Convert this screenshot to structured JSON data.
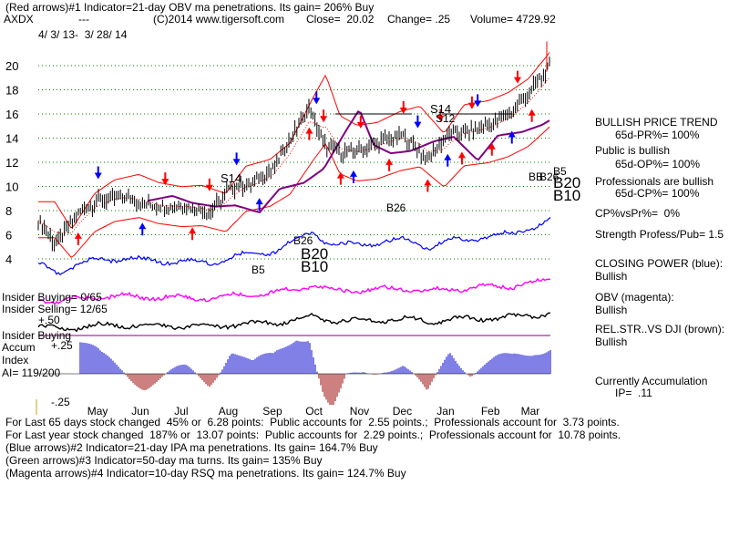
{
  "header": {
    "line1": "(Red arrows)#1 Indicator=21-day OBV ma penetrations. Its gain= 206% Buy",
    "ticker": "AXDX",
    "dashes": "---",
    "copyright": "(C)2014 www.tigersoft.com",
    "close": "Close=  20.02",
    "change": "Change= .25",
    "volume": "Volume= 4729.92",
    "date_range": "4/ 3/ 13-  3/ 28/ 14"
  },
  "right_panel": {
    "trend_title": "BULLISH PRICE TREND",
    "pr": "65d-PR%= 100%",
    "public_title": "Public is bullish",
    "op": "65d-OP%= 100%",
    "pro_title": "Professionals are bullish",
    "cp": "65d-CP%= 100%",
    "cp_vs_pr": "CP%vsPr%=  0%",
    "strength": "Strength Profess/Pub= 1.5",
    "closing_power": "CLOSING POWER (blue):",
    "closing_power_val": "Bullish",
    "obv": "OBV (magenta):",
    "obv_val": "Bullish",
    "relstr": "REL.STR..VS DJI (brown):",
    "relstr_val": "Bullish",
    "accum": "Currently Accumulation",
    "ip": "IP=  .11"
  },
  "left_labels": {
    "insider_buying": "Insider Buying= 0/65",
    "insider_selling": "Insider Selling= 12/65",
    "plus50": "+.50",
    "insider_buying2": "Insider Buying",
    "accum": "Accum",
    "plus25": "+.25",
    "index": "Index",
    "ai": "AI= 119/200",
    "minus25": "-.25"
  },
  "footer": {
    "line1": "For Last 65 days stock changed  45% or  6.28 points:  Public accounts for  2.55 points.;  Professionals account for  3.73 points.",
    "line2": "For Last year stock changed  187% or  13.07 points:  Public accounts for  2.29 points.;  Professionals account for  10.78 points.",
    "line3": "(Blue arrows)#2 Indicator=21-day IPA ma penetrations. Its gain= 164.7% Buy",
    "line4": "(Green arrows)#3 Indicator=50-day ma turns. Its gain= 135% Buy",
    "line5": "(Magenta arrows)#4 Indicator=10-day RSQ ma penetrations. Its gain= 124.7% Buy"
  },
  "annotations": {
    "s14_left": "S14",
    "s14_right": "S14",
    "s12": "S12",
    "b26_mid": "B26",
    "b26_sep": "B26",
    "b20_sep": "B20",
    "b10_sep": "B10",
    "b5_aug": "B5",
    "b26_mar": "B26",
    "b5_mar": "B5",
    "b20_mar": "B20",
    "b10_mar": "B10",
    "bb_mar": "BB",
    "b5_label": "B5"
  },
  "colors": {
    "price_bar": "#000000",
    "band": "#ff0000",
    "ma50": "#800080",
    "closing_power": "#0000ff",
    "obv": "#ff00ff",
    "relstr": "#000000",
    "accum_pos": "#0000cc",
    "accum_neg": "#990000",
    "grid": "#008000",
    "red_arrow": "#ff0000",
    "blue_arrow": "#0000ff"
  },
  "chart_data": {
    "type": "line",
    "y_ticks": [
      "20",
      "18",
      "16",
      "14",
      "12",
      "10",
      "8",
      "6",
      "4"
    ],
    "ylim": [
      3,
      22
    ],
    "x_ticks": [
      "May",
      "Jun",
      "Jul",
      "Aug",
      "Sep",
      "Oct",
      "Nov",
      "Dec",
      "Jan",
      "Feb",
      "Mar"
    ],
    "series": [
      {
        "name": "Close",
        "x": [
          "4/3/13",
          "4/15/13",
          "5/1/13",
          "5/15/13",
          "6/1/13",
          "6/15/13",
          "7/1/13",
          "7/15/13",
          "8/1/13",
          "8/15/13",
          "9/1/13",
          "9/15/13",
          "10/1/13",
          "10/10/13",
          "10/20/13",
          "11/1/13",
          "11/15/13",
          "12/1/13",
          "12/15/13",
          "1/1/14",
          "1/15/14",
          "2/1/14",
          "2/15/14",
          "3/1/14",
          "3/15/14",
          "3/28/14"
        ],
        "values": [
          7.2,
          5.2,
          7.8,
          8.8,
          9.2,
          8.6,
          8.3,
          8.4,
          7.8,
          9.8,
          10.3,
          11.5,
          14.8,
          16.5,
          13.5,
          12.8,
          13.0,
          13.8,
          14.2,
          12.2,
          14.3,
          14.6,
          15.2,
          16.2,
          18.0,
          20.02
        ]
      }
    ],
    "arrows": {
      "red": [
        "5/1/13",
        "7/1/13",
        "7/20/13",
        "8/1/13",
        "10/10/13",
        "10/20/13",
        "11/1/13",
        "11/15/13",
        "12/5/13",
        "12/15/13",
        "1/1/14",
        "1/10/14",
        "1/25/14",
        "2/1/14",
        "2/15/14",
        "3/5/14",
        "3/15/14"
      ],
      "blue": [
        "5/15/13",
        "6/15/13",
        "8/20/13",
        "9/5/13",
        "10/15/13",
        "11/10/13",
        "12/25/13",
        "1/15/14",
        "2/5/14",
        "3/1/14"
      ]
    }
  }
}
